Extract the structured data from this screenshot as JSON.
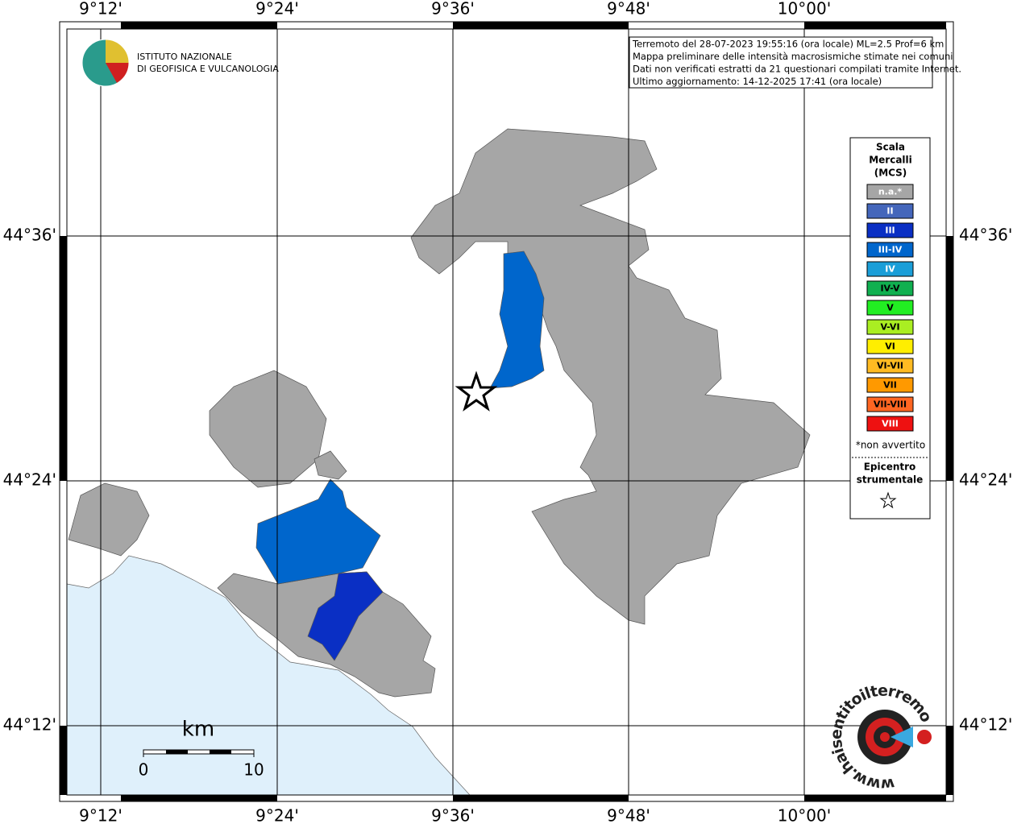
{
  "graticule": {
    "longitudes": [
      "9°12'",
      "9°24'",
      "9°36'",
      "9°48'",
      "10°00'"
    ],
    "latitudes": [
      "44°36'",
      "44°24'",
      "44°12'"
    ]
  },
  "info": [
    "Terremoto del 28-07-2023 19:55:16 (ora locale) ML=2.5 Prof=6 km",
    "Mappa preliminare delle intensità macrosismiche stimate nei comuni",
    "Dati non verificati estratti da 21 questionari compilati tramite Internet.",
    "Ultimo aggiornamento: 14-12-2025 17:41 (ora locale)"
  ],
  "institute": [
    "ISTITUTO NAZIONALE",
    "DI GEOFISICA E VULCANOLOGIA"
  ],
  "legend": {
    "title": [
      "Scala",
      "Mercalli",
      "(MCS)"
    ],
    "items": [
      {
        "label": "n.a.*",
        "color": "#a6a6a6"
      },
      {
        "label": "II",
        "color": "#4466bb"
      },
      {
        "label": "III",
        "color": "#0a2fc4"
      },
      {
        "label": "III-IV",
        "color": "#0066cc"
      },
      {
        "label": "IV",
        "color": "#1a9ed8"
      },
      {
        "label": "IV-V",
        "color": "#10b050"
      },
      {
        "label": "V",
        "color": "#22ee22"
      },
      {
        "label": "V-VI",
        "color": "#aaee22"
      },
      {
        "label": "VI",
        "color": "#ffee00"
      },
      {
        "label": "VI-VII",
        "color": "#ffbb22"
      },
      {
        "label": "VII",
        "color": "#ff9900"
      },
      {
        "label": "VII-VIII",
        "color": "#ff6622"
      },
      {
        "label": "VIII",
        "color": "#ee1111"
      }
    ],
    "note": "*non avvertito",
    "epicenter": [
      "Epicentro",
      "strumentale"
    ]
  },
  "scale": {
    "unit": "km",
    "labels": [
      "0",
      "10"
    ]
  },
  "logo": "www.haisentitoilterremoto.it"
}
